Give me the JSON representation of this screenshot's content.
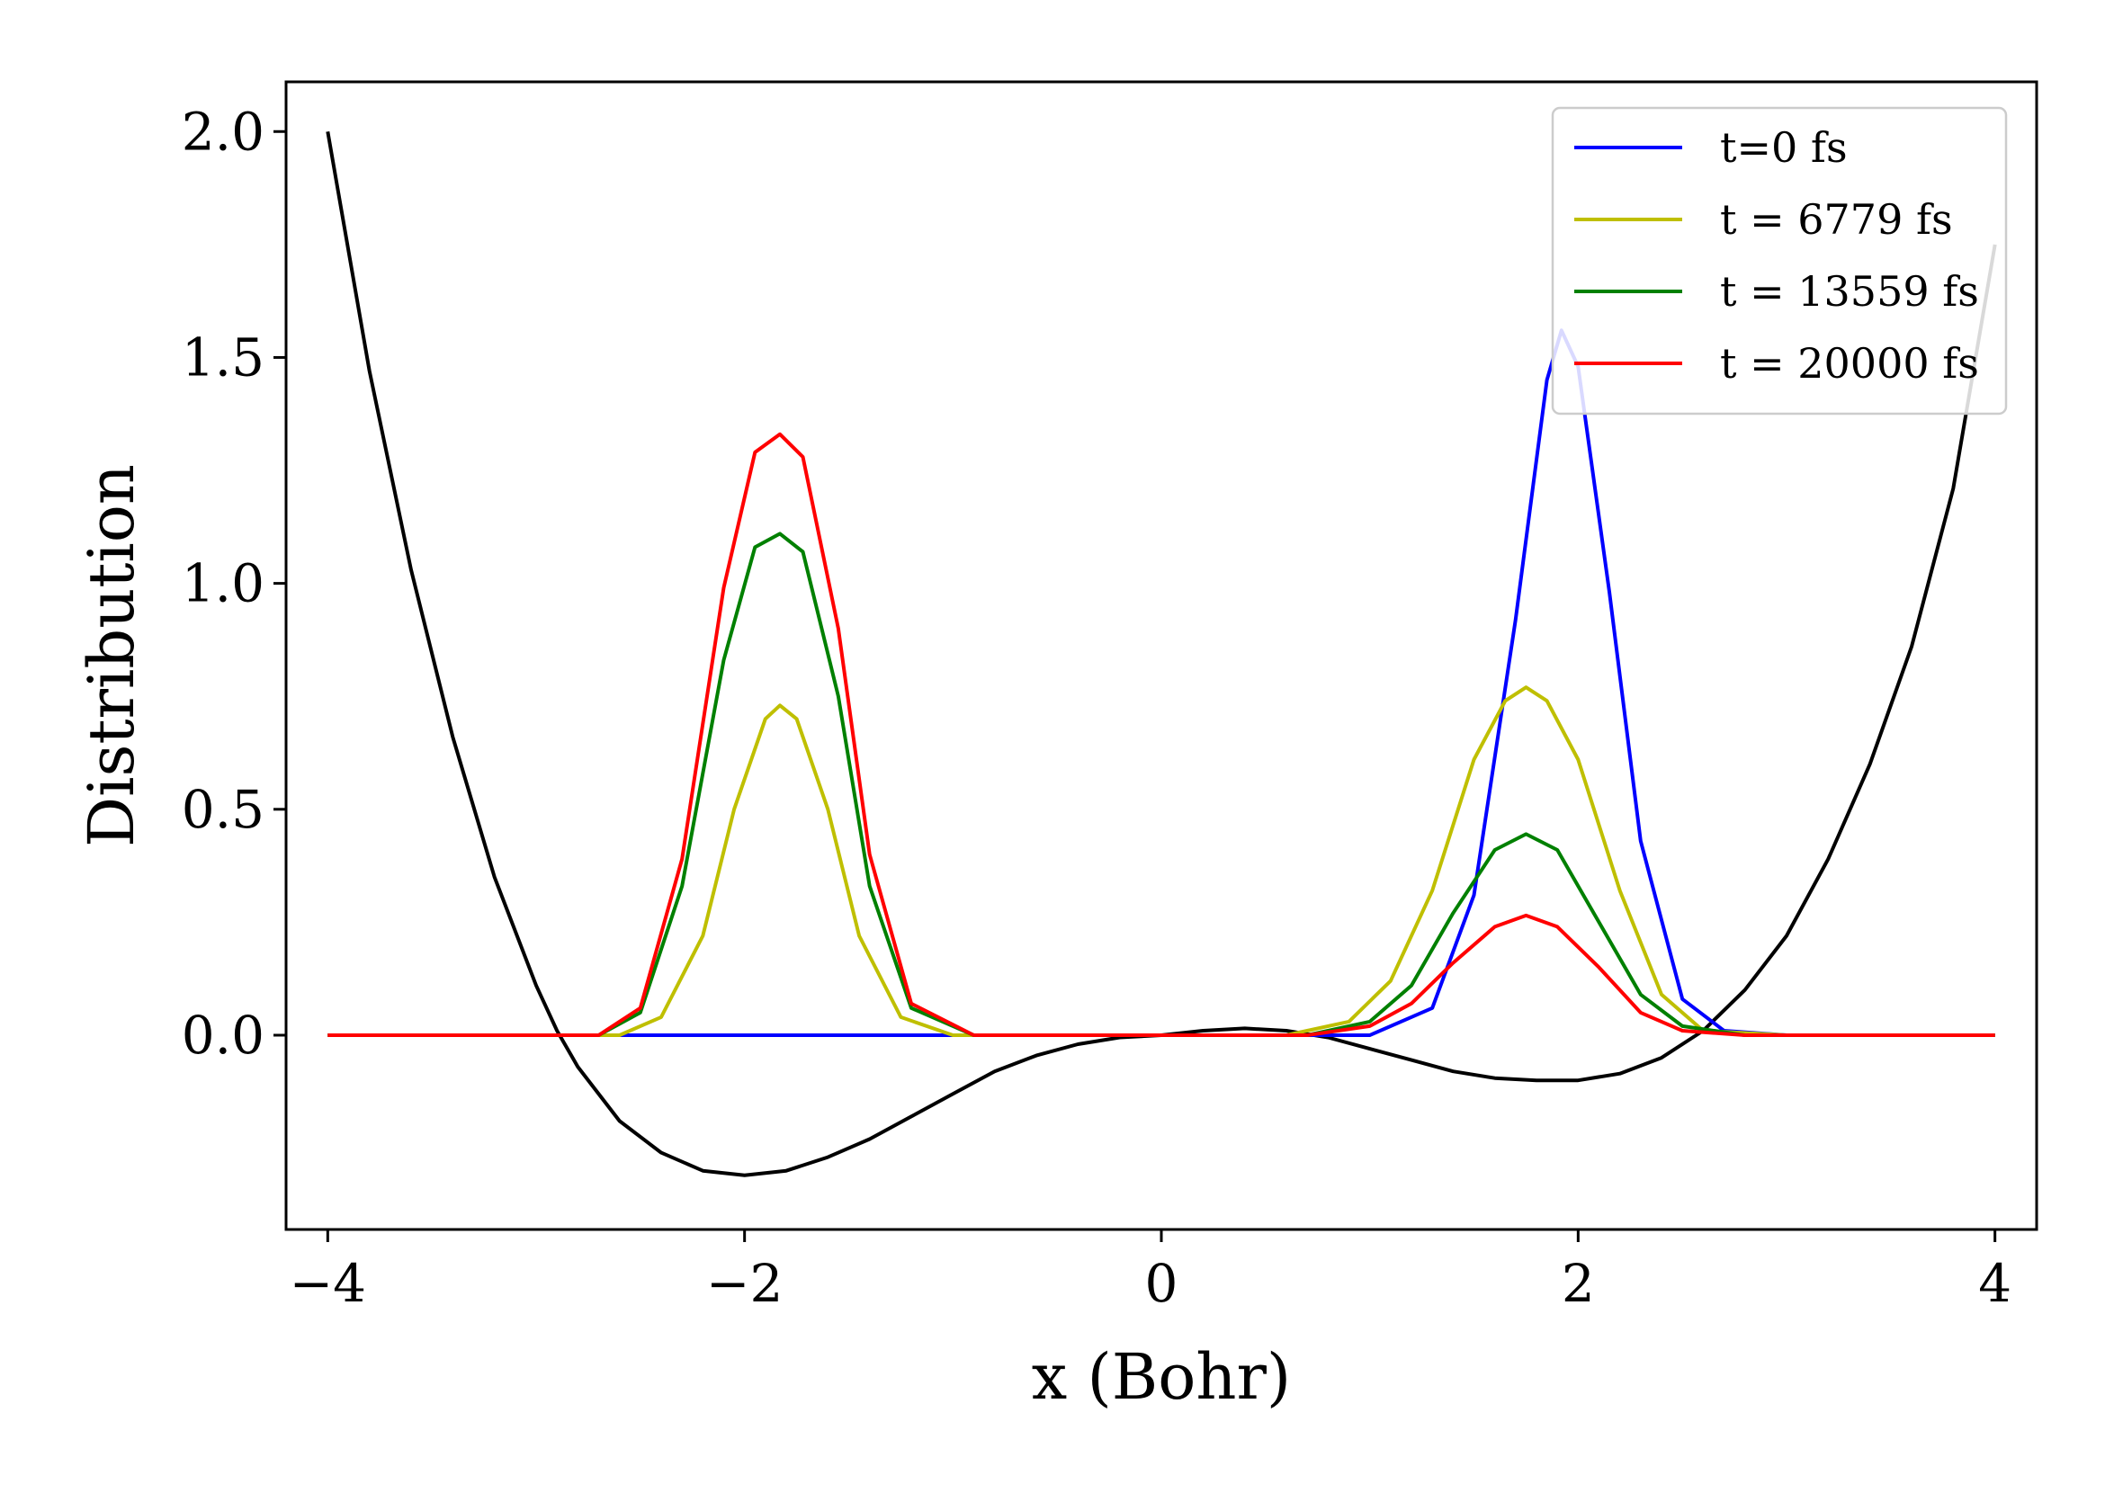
{
  "chart_data": {
    "type": "line",
    "xlabel": "x (Bohr)",
    "ylabel": "Distribution",
    "xlim": [
      -4.2,
      4.2
    ],
    "ylim": [
      -0.43,
      2.11
    ],
    "x_ticks": [
      -4,
      -2,
      0,
      2,
      4
    ],
    "x_tick_labels": [
      "−4",
      "−2",
      "0",
      "2",
      "4"
    ],
    "y_ticks": [
      0.0,
      0.5,
      1.0,
      1.5,
      2.0
    ],
    "y_tick_labels": [
      "0.0",
      "0.5",
      "1.0",
      "1.5",
      "2.0"
    ],
    "grid": false,
    "legend_position": "top-right",
    "series": [
      {
        "name": "t=0 fs",
        "color": "#0000ff",
        "points": [
          [
            -4.0,
            0.0
          ],
          [
            1.0,
            0.0
          ],
          [
            1.3,
            0.06
          ],
          [
            1.5,
            0.31
          ],
          [
            1.7,
            0.92
          ],
          [
            1.85,
            1.45
          ],
          [
            1.92,
            1.56
          ],
          [
            2.0,
            1.48
          ],
          [
            2.15,
            0.98
          ],
          [
            2.3,
            0.43
          ],
          [
            2.5,
            0.08
          ],
          [
            2.7,
            0.01
          ],
          [
            3.0,
            0.0
          ],
          [
            4.0,
            0.0
          ]
        ]
      },
      {
        "name": "t = 6779 fs",
        "color": "#bfbf00",
        "points": [
          [
            -4.0,
            0.0
          ],
          [
            -2.6,
            0.0
          ],
          [
            -2.4,
            0.04
          ],
          [
            -2.2,
            0.22
          ],
          [
            -2.05,
            0.5
          ],
          [
            -1.9,
            0.7
          ],
          [
            -1.83,
            0.73
          ],
          [
            -1.75,
            0.7
          ],
          [
            -1.6,
            0.5
          ],
          [
            -1.45,
            0.22
          ],
          [
            -1.25,
            0.04
          ],
          [
            -1.0,
            0.0
          ],
          [
            0.6,
            0.0
          ],
          [
            0.9,
            0.03
          ],
          [
            1.1,
            0.12
          ],
          [
            1.3,
            0.32
          ],
          [
            1.5,
            0.61
          ],
          [
            1.65,
            0.74
          ],
          [
            1.75,
            0.77
          ],
          [
            1.85,
            0.74
          ],
          [
            2.0,
            0.61
          ],
          [
            2.2,
            0.32
          ],
          [
            2.4,
            0.09
          ],
          [
            2.6,
            0.01
          ],
          [
            3.0,
            0.0
          ],
          [
            4.0,
            0.0
          ]
        ]
      },
      {
        "name": "t = 13559 fs",
        "color": "#008000",
        "points": [
          [
            -4.0,
            0.0
          ],
          [
            -2.7,
            0.0
          ],
          [
            -2.5,
            0.05
          ],
          [
            -2.3,
            0.33
          ],
          [
            -2.1,
            0.83
          ],
          [
            -1.95,
            1.08
          ],
          [
            -1.83,
            1.11
          ],
          [
            -1.72,
            1.07
          ],
          [
            -1.55,
            0.75
          ],
          [
            -1.4,
            0.33
          ],
          [
            -1.2,
            0.06
          ],
          [
            -0.9,
            0.0
          ],
          [
            0.7,
            0.0
          ],
          [
            1.0,
            0.03
          ],
          [
            1.2,
            0.11
          ],
          [
            1.4,
            0.27
          ],
          [
            1.6,
            0.41
          ],
          [
            1.75,
            0.445
          ],
          [
            1.9,
            0.41
          ],
          [
            2.1,
            0.25
          ],
          [
            2.3,
            0.09
          ],
          [
            2.5,
            0.02
          ],
          [
            2.8,
            0.0
          ],
          [
            4.0,
            0.0
          ]
        ]
      },
      {
        "name": "t = 20000 fs",
        "color": "#ff0000",
        "points": [
          [
            -4.0,
            0.0
          ],
          [
            -2.7,
            0.0
          ],
          [
            -2.5,
            0.06
          ],
          [
            -2.3,
            0.39
          ],
          [
            -2.1,
            0.99
          ],
          [
            -1.95,
            1.29
          ],
          [
            -1.83,
            1.33
          ],
          [
            -1.72,
            1.28
          ],
          [
            -1.55,
            0.9
          ],
          [
            -1.4,
            0.4
          ],
          [
            -1.2,
            0.07
          ],
          [
            -0.9,
            0.0
          ],
          [
            0.7,
            0.0
          ],
          [
            1.0,
            0.02
          ],
          [
            1.2,
            0.07
          ],
          [
            1.4,
            0.16
          ],
          [
            1.6,
            0.24
          ],
          [
            1.75,
            0.265
          ],
          [
            1.9,
            0.24
          ],
          [
            2.1,
            0.15
          ],
          [
            2.3,
            0.05
          ],
          [
            2.5,
            0.01
          ],
          [
            2.8,
            0.0
          ],
          [
            4.0,
            0.0
          ]
        ]
      },
      {
        "color": "#000000",
        "points": [
          [
            -4.0,
            2.0
          ],
          [
            -3.8,
            1.47
          ],
          [
            -3.6,
            1.03
          ],
          [
            -3.4,
            0.66
          ],
          [
            -3.2,
            0.35
          ],
          [
            -3.0,
            0.11
          ],
          [
            -2.9,
            0.01
          ],
          [
            -2.8,
            -0.07
          ],
          [
            -2.6,
            -0.19
          ],
          [
            -2.4,
            -0.26
          ],
          [
            -2.2,
            -0.3
          ],
          [
            -2.0,
            -0.31
          ],
          [
            -1.8,
            -0.3
          ],
          [
            -1.6,
            -0.27
          ],
          [
            -1.4,
            -0.23
          ],
          [
            -1.2,
            -0.18
          ],
          [
            -1.0,
            -0.13
          ],
          [
            -0.8,
            -0.08
          ],
          [
            -0.6,
            -0.045
          ],
          [
            -0.4,
            -0.02
          ],
          [
            -0.2,
            -0.005
          ],
          [
            0.0,
            0.0
          ],
          [
            0.2,
            0.01
          ],
          [
            0.4,
            0.015
          ],
          [
            0.6,
            0.01
          ],
          [
            0.8,
            -0.005
          ],
          [
            1.0,
            -0.03
          ],
          [
            1.2,
            -0.055
          ],
          [
            1.4,
            -0.08
          ],
          [
            1.6,
            -0.095
          ],
          [
            1.8,
            -0.1
          ],
          [
            2.0,
            -0.1
          ],
          [
            2.2,
            -0.085
          ],
          [
            2.4,
            -0.05
          ],
          [
            2.6,
            0.01
          ],
          [
            2.8,
            0.1
          ],
          [
            3.0,
            0.22
          ],
          [
            3.2,
            0.39
          ],
          [
            3.4,
            0.6
          ],
          [
            3.6,
            0.86
          ],
          [
            3.8,
            1.21
          ],
          [
            4.0,
            1.75
          ]
        ]
      }
    ]
  }
}
